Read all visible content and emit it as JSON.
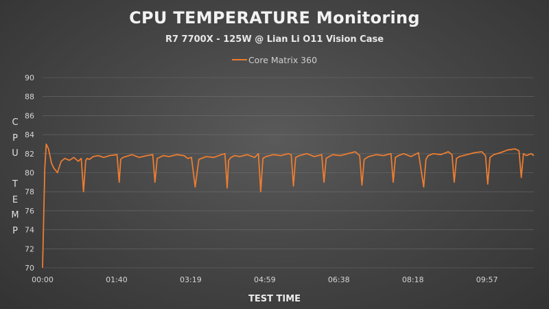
{
  "colors": {
    "series": "#ed7d31",
    "grid": "#7a7a7a",
    "text": "#e6e6e6"
  },
  "chart_data": {
    "type": "line",
    "title": "CPU TEMPERATURE Monitoring",
    "subtitle": "R7 7700X - 125W @ Lian Li O11 Vision Case",
    "xlabel": "TEST TIME",
    "ylabel": "CPU TEMP",
    "ylim": [
      70,
      90
    ],
    "yticks": [
      70,
      72,
      74,
      76,
      78,
      80,
      82,
      84,
      86,
      88,
      90
    ],
    "xtick_labels": [
      "00:00",
      "01:40",
      "03:19",
      "04:59",
      "06:38",
      "08:18",
      "09:57"
    ],
    "x_range_seconds": [
      0,
      660
    ],
    "grid": "horizontal",
    "legend_position": "top",
    "series": [
      {
        "name": "Core Matrix 360",
        "x_seconds": [
          0,
          3,
          5,
          8,
          12,
          15,
          20,
          25,
          30,
          36,
          42,
          48,
          52,
          55,
          58,
          60,
          63,
          68,
          75,
          82,
          90,
          100,
          103,
          105,
          108,
          112,
          120,
          130,
          140,
          148,
          151,
          154,
          157,
          162,
          170,
          180,
          190,
          195,
          200,
          205,
          210,
          220,
          230,
          240,
          245,
          248,
          250,
          253,
          258,
          265,
          275,
          285,
          290,
          293,
          296,
          300,
          310,
          320,
          330,
          334,
          337,
          340,
          345,
          355,
          365,
          375,
          378,
          381,
          385,
          390,
          400,
          410,
          420,
          426,
          429,
          432,
          438,
          448,
          458,
          468,
          471,
          474,
          478,
          485,
          495,
          505,
          512,
          515,
          518,
          525,
          535,
          545,
          550,
          553,
          556,
          560,
          570,
          580,
          590,
          595,
          598,
          601,
          606,
          615,
          625,
          635,
          640,
          643,
          646,
          650,
          656,
          660
        ],
        "values": [
          70,
          80.5,
          83,
          82.5,
          81,
          80.5,
          80,
          81.2,
          81.5,
          81.3,
          81.6,
          81.2,
          81.5,
          78,
          81.3,
          81.5,
          81.4,
          81.7,
          81.8,
          81.6,
          81.8,
          81.9,
          79,
          81.4,
          81.6,
          81.7,
          81.9,
          81.6,
          81.8,
          81.9,
          79,
          81.5,
          81.6,
          81.8,
          81.7,
          81.9,
          81.8,
          81.5,
          81.6,
          78.5,
          81.4,
          81.7,
          81.6,
          81.9,
          82,
          78.4,
          81.3,
          81.6,
          81.8,
          81.7,
          81.9,
          81.6,
          82,
          78,
          81.5,
          81.7,
          81.9,
          81.8,
          82,
          81.9,
          78.6,
          81.6,
          81.8,
          82,
          81.7,
          81.9,
          79,
          81.5,
          81.7,
          81.9,
          81.8,
          82,
          82.2,
          81.8,
          78.7,
          81.4,
          81.7,
          81.9,
          81.8,
          82,
          79,
          81.6,
          81.8,
          82,
          81.7,
          82.1,
          78.5,
          81.4,
          81.8,
          82,
          81.9,
          82.2,
          81.9,
          79,
          81.5,
          81.7,
          81.9,
          82.1,
          82.2,
          81.8,
          78.8,
          81.6,
          81.9,
          82.1,
          82.4,
          82.5,
          82.3,
          79.5,
          82,
          81.8,
          82,
          81.8
        ]
      }
    ]
  }
}
